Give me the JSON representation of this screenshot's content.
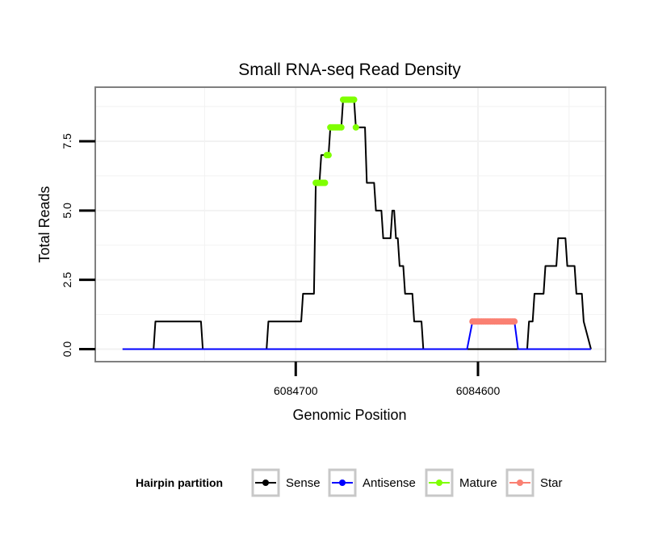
{
  "chart_data": {
    "type": "line",
    "title": "Small RNA-seq Read Density",
    "xlabel": "Genomic Position",
    "ylabel": "Total Reads",
    "x_reversed": true,
    "xlim": [
      6084810,
      6084530
    ],
    "ylim": [
      -0.45,
      9.45
    ],
    "x_ticks": [
      6084700,
      6084600
    ],
    "x_tick_labels": [
      "6084700",
      "6084600"
    ],
    "y_ticks": [
      0,
      2.5,
      5,
      7.5
    ],
    "y_tick_labels": [
      "0.0",
      "2.5",
      "5.0",
      "7.5"
    ],
    "grid": true,
    "legend_position": "bottom",
    "legend_title": "Hairpin partition",
    "colors": {
      "sense": "#000000",
      "antisense": "#0000ff",
      "mature": "#7fff00",
      "star": "#fa8072",
      "panel_border": "#7f7f7f",
      "grid": "#f2f2f2"
    },
    "series": [
      {
        "name": "Sense",
        "color": "#000000",
        "style": "line",
        "x": [
          6084795,
          6084778,
          6084777,
          6084752,
          6084751,
          6084716,
          6084715,
          6084697,
          6084696,
          6084690,
          6084689,
          6084687,
          6084686,
          6084682,
          6084681,
          6084675,
          6084674,
          6084668,
          6084667,
          6084662,
          6084661,
          6084657,
          6084656,
          6084653,
          6084652,
          6084648,
          6084647,
          6084646,
          6084645,
          6084644,
          6084643,
          6084641,
          6084640,
          6084636,
          6084635,
          6084631,
          6084630,
          6084628,
          6084627,
          6084626,
          6084625,
          6084623,
          6084622,
          6084615,
          6084614,
          6084604,
          6084603,
          6084579,
          6084578,
          6084573,
          6084572,
          6084570,
          6084569,
          6084564,
          6084563,
          6084557,
          6084556,
          6084555,
          6084554,
          6084552,
          6084551,
          6084547,
          6084546,
          6084543,
          6084542,
          6084538
        ],
        "y": [
          0,
          0,
          1,
          1,
          0,
          0,
          1,
          1,
          2,
          2,
          6,
          6,
          7,
          7,
          8,
          8,
          9,
          9,
          8,
          8,
          6,
          6,
          5,
          5,
          4,
          4,
          5,
          5,
          4,
          4,
          3,
          3,
          2,
          2,
          1,
          1,
          0,
          0,
          0,
          0,
          0,
          0,
          0,
          0,
          0,
          0,
          0,
          0,
          0,
          0,
          1,
          1,
          2,
          2,
          3,
          3,
          4,
          4,
          4,
          4,
          3,
          3,
          2,
          2,
          1,
          0
        ]
      },
      {
        "name": "Antisense",
        "color": "#0000ff",
        "style": "line",
        "x": [
          6084795,
          6084606,
          6084603,
          6084580,
          6084578,
          6084538
        ],
        "y": [
          0,
          0,
          1,
          1,
          0,
          0
        ]
      },
      {
        "name": "Mature",
        "color": "#7fff00",
        "style": "points",
        "x": [
          6084689,
          6084688,
          6084687,
          6084686,
          6084685,
          6084684,
          6084683,
          6084682,
          6084681,
          6084680,
          6084679,
          6084678,
          6084677,
          6084676,
          6084675,
          6084674,
          6084673,
          6084672,
          6084671,
          6084670,
          6084669,
          6084668,
          6084667
        ],
        "y": [
          6,
          6,
          6,
          6,
          6,
          6,
          7,
          7,
          8,
          8,
          8,
          8,
          8,
          8,
          8,
          9,
          9,
          9,
          9,
          9,
          9,
          9,
          8
        ]
      },
      {
        "name": "Star",
        "color": "#fa8072",
        "style": "points",
        "x": [
          6084603,
          6084602,
          6084601,
          6084600,
          6084599,
          6084598,
          6084597,
          6084596,
          6084595,
          6084594,
          6084593,
          6084592,
          6084591,
          6084590,
          6084589,
          6084588,
          6084587,
          6084586,
          6084585,
          6084584,
          6084583,
          6084582,
          6084581,
          6084580
        ],
        "y": [
          1,
          1,
          1,
          1,
          1,
          1,
          1,
          1,
          1,
          1,
          1,
          1,
          1,
          1,
          1,
          1,
          1,
          1,
          1,
          1,
          1,
          1,
          1,
          1
        ]
      }
    ],
    "legend": [
      {
        "label": "Sense",
        "color": "#000000"
      },
      {
        "label": "Antisense",
        "color": "#0000ff"
      },
      {
        "label": "Mature",
        "color": "#7fff00"
      },
      {
        "label": "Star",
        "color": "#fa8072"
      }
    ]
  }
}
